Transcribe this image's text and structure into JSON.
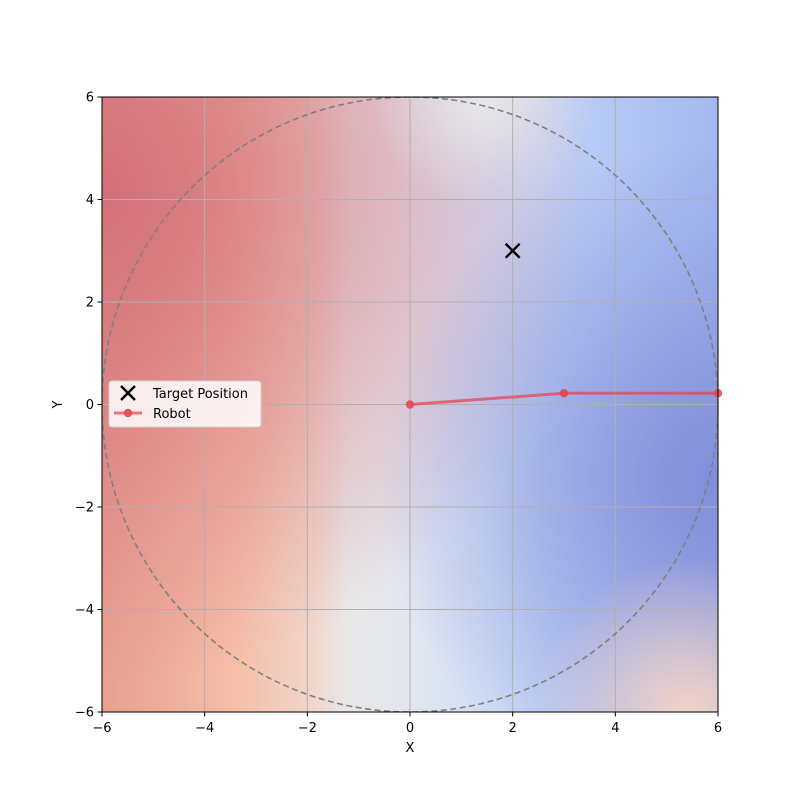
{
  "chart_data": {
    "type": "line",
    "title": "",
    "xlabel": "X",
    "ylabel": "Y",
    "xlim": [
      -6,
      6
    ],
    "ylim": [
      -6,
      6
    ],
    "xticks": [
      -6,
      -4,
      -2,
      0,
      2,
      4,
      6
    ],
    "yticks": [
      -6,
      -4,
      -2,
      0,
      2,
      4,
      6
    ],
    "xtick_labels": [
      "−6",
      "−4",
      "−2",
      "0",
      "2",
      "4",
      "6"
    ],
    "ytick_labels": [
      "−6",
      "−4",
      "−2",
      "0",
      "2",
      "4",
      "6"
    ],
    "grid": true,
    "legend_position": "center-left",
    "background": {
      "type": "heatmap",
      "colormap": "coolwarm",
      "description_colors": {
        "red": "#d06a78",
        "light_red": "#f6b59e",
        "neutral": "#e9e9ea",
        "light_blue": "#c9d8f7",
        "blue": "#8a9ae0"
      }
    },
    "workspace_circle": {
      "center": [
        0,
        0
      ],
      "radius": 6,
      "color": "#808080",
      "style": "dashed"
    },
    "series": [
      {
        "name": "Target Position",
        "kind": "marker",
        "marker": "x",
        "color": "#000000",
        "points": [
          {
            "x": 2,
            "y": 3
          }
        ]
      },
      {
        "name": "Robot",
        "kind": "line",
        "marker": "o",
        "color": "#e8424e",
        "points": [
          {
            "x": 0,
            "y": 0
          },
          {
            "x": 3,
            "y": 0.22
          },
          {
            "x": 6,
            "y": 0.22
          }
        ]
      }
    ]
  }
}
